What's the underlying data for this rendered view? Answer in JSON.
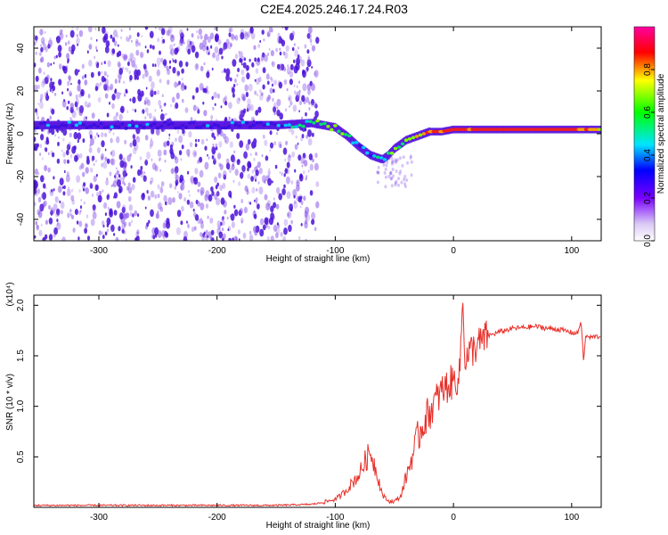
{
  "title": "C2E4.2025.246.17.24.R03",
  "colors": {
    "line": "#e8302a",
    "axis": "#000000",
    "spec_core": "#4a10d8",
    "spec_scatter": "#8a55e8"
  },
  "chart_data": [
    {
      "type": "heatmap",
      "name": "spectrogram",
      "title": "C2E4.2025.246.17.24.R03",
      "xlabel": "Height of straight line (km)",
      "ylabel": "Frequency (Hz)",
      "xlim": [
        -355,
        125
      ],
      "ylim": [
        -50,
        50
      ],
      "xticks": [
        -300,
        -200,
        -100,
        0,
        100
      ],
      "yticks": [
        -40,
        -20,
        0,
        20,
        40
      ],
      "colorbar": {
        "label": "Normalized spectral amplitude",
        "range": [
          0,
          1
        ],
        "ticks": [
          "0.0",
          "0.2",
          "0.4",
          "0.6",
          "0.8"
        ]
      },
      "ridge": {
        "x": [
          -355,
          -300,
          -250,
          -200,
          -150,
          -120,
          -100,
          -90,
          -80,
          -70,
          -60,
          -55,
          -50,
          -40,
          -30,
          -20,
          -10,
          0,
          50,
          100,
          125
        ],
        "freq": [
          4,
          4,
          4,
          4,
          4,
          5,
          3,
          -1,
          -6,
          -10,
          -12,
          -10,
          -7,
          -3,
          -1,
          1,
          1,
          2,
          2,
          2,
          2
        ],
        "amplitude": [
          0.35,
          0.35,
          0.35,
          0.35,
          0.4,
          0.55,
          0.65,
          0.5,
          0.45,
          0.45,
          0.5,
          0.5,
          0.6,
          0.6,
          0.75,
          0.85,
          0.85,
          0.9,
          0.95,
          0.9,
          0.75
        ]
      }
    },
    {
      "type": "line",
      "name": "snr",
      "xlabel": "Height of straight line (km)",
      "ylabel": "SNR (10 * v/v)",
      "scale_label": "(x10⁴)",
      "xlim": [
        -355,
        125
      ],
      "ylim": [
        0,
        2.1
      ],
      "xticks": [
        -300,
        -200,
        -100,
        0,
        100
      ],
      "yticks": [
        "0.5",
        "1.0",
        "1.5",
        "2.0"
      ],
      "series": [
        {
          "name": "SNR",
          "x": [
            -355,
            -300,
            -250,
            -200,
            -150,
            -120,
            -110,
            -100,
            -95,
            -90,
            -85,
            -80,
            -75,
            -70,
            -65,
            -60,
            -55,
            -50,
            -45,
            -40,
            -35,
            -30,
            -25,
            -20,
            -15,
            -10,
            -5,
            0,
            5,
            8,
            10,
            15,
            20,
            25,
            30,
            40,
            50,
            60,
            70,
            80,
            90,
            100,
            105,
            108,
            110,
            112,
            115,
            120,
            125
          ],
          "y": [
            0.02,
            0.02,
            0.02,
            0.02,
            0.02,
            0.03,
            0.05,
            0.08,
            0.12,
            0.18,
            0.25,
            0.32,
            0.45,
            0.55,
            0.35,
            0.12,
            0.06,
            0.06,
            0.1,
            0.3,
            0.5,
            0.7,
            0.85,
            0.95,
            1.05,
            1.15,
            1.2,
            1.25,
            1.3,
            2.05,
            1.45,
            1.55,
            1.6,
            1.65,
            1.7,
            1.74,
            1.77,
            1.78,
            1.79,
            1.77,
            1.76,
            1.73,
            1.72,
            1.85,
            1.45,
            1.7,
            1.68,
            1.69,
            1.69
          ]
        }
      ]
    }
  ]
}
